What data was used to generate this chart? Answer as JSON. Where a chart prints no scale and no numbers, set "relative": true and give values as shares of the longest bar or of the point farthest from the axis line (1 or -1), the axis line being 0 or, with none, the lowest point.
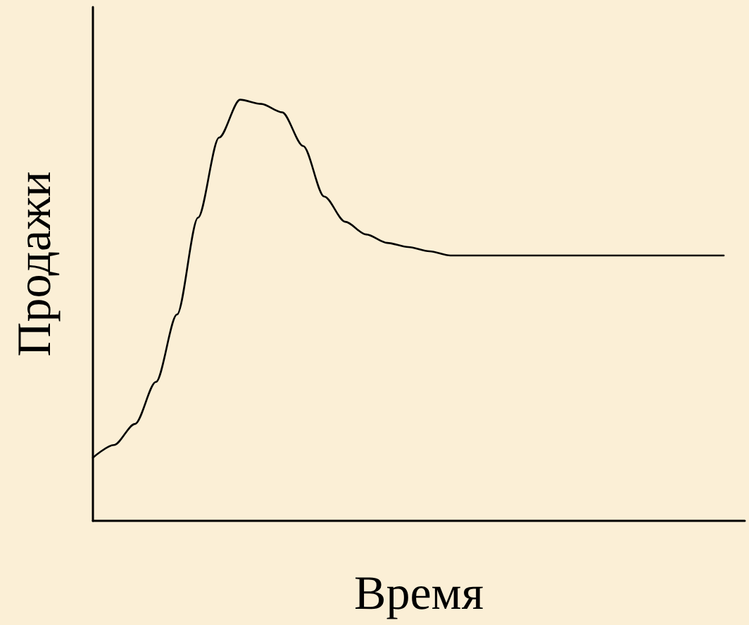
{
  "chart_data": {
    "type": "line",
    "relative": true,
    "xlabel": "Время",
    "ylabel": "Продажи",
    "marker": "none",
    "line_style": "solid",
    "grid": false,
    "categories": [
      null,
      null,
      null,
      null,
      null,
      null,
      null,
      null,
      null,
      null,
      null,
      null,
      null,
      null,
      null,
      null,
      null,
      null,
      null,
      null,
      null,
      null,
      null,
      null,
      null,
      null,
      null,
      null,
      null,
      null,
      null,
      null
    ],
    "series": [
      {
        "color": "#000000",
        "values": [
          0.15,
          0.18,
          0.23,
          0.33,
          0.49,
          0.72,
          0.91,
          1,
          0.99,
          0.97,
          0.89,
          0.77,
          0.71,
          0.68,
          0.66,
          0.65,
          0.64,
          0.63,
          0.63,
          0.63,
          0.63,
          0.63,
          0.63,
          0.63,
          0.63,
          0.63,
          0.63,
          0.63,
          0.63,
          0.63,
          0.63,
          null
        ]
      }
    ]
  }
}
